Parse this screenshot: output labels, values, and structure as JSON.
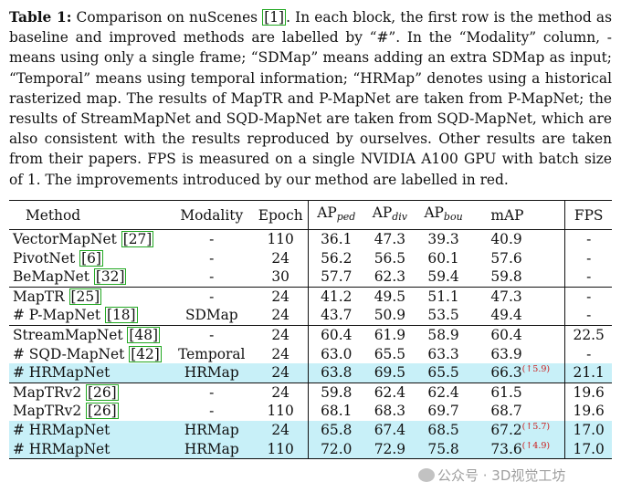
{
  "caption": {
    "label": "Table 1:",
    "seg1": " Comparison on nuScenes ",
    "cite1": "[1]",
    "seg2": ". In each block, the first row is the method as baseline and improved methods are labelled by “#”. In the “Modality” column, - means using only a single frame; “SDMap” means adding an extra SDMap as input; “Temporal” means using temporal information; “HRMap” denotes using a historical rasterized map. The results of MapTR and P-MapNet are taken from P-MapNet; the results of StreamMapNet and SQD-MapNet are taken from SQD-MapNet, which are also consistent with the results reproduced by ourselves. Other results are taken from their papers. FPS is measured on a single NVIDIA A100 GPU with batch size of 1. The improvements introduced by our method are labelled in red."
  },
  "table": {
    "headers": {
      "method": "Method",
      "modality": "Modality",
      "epoch": "Epoch",
      "ap_ped": "AP",
      "ap_ped_sub": "ped",
      "ap_div": "AP",
      "ap_div_sub": "div",
      "ap_bou": "AP",
      "ap_bou_sub": "bou",
      "map": "mAP",
      "fps": "FPS"
    },
    "rows": [
      {
        "method": "VectorMapNet ",
        "cite": "[27]",
        "modality": "-",
        "epoch": "110",
        "ap_ped": "36.1",
        "ap_div": "47.3",
        "ap_bou": "39.3",
        "map": "40.9",
        "gain": "",
        "fps": "-"
      },
      {
        "method": "PivotNet ",
        "cite": "[6]",
        "modality": "-",
        "epoch": "24",
        "ap_ped": "56.2",
        "ap_div": "56.5",
        "ap_bou": "60.1",
        "map": "57.6",
        "gain": "",
        "fps": "-"
      },
      {
        "method": "BeMapNet ",
        "cite": "[32]",
        "modality": "-",
        "epoch": "30",
        "ap_ped": "57.7",
        "ap_div": "62.3",
        "ap_bou": "59.4",
        "map": "59.8",
        "gain": "",
        "fps": "-"
      },
      {
        "method": "MapTR ",
        "cite": "[25]",
        "modality": "-",
        "epoch": "24",
        "ap_ped": "41.2",
        "ap_div": "49.5",
        "ap_bou": "51.1",
        "map": "47.3",
        "gain": "",
        "fps": "-"
      },
      {
        "method": "# P-MapNet ",
        "cite": "[18]",
        "modality": "SDMap",
        "epoch": "24",
        "ap_ped": "43.7",
        "ap_div": "50.9",
        "ap_bou": "53.5",
        "map": "49.4",
        "gain": "",
        "fps": "-"
      },
      {
        "method": "StreamMapNet ",
        "cite": "[48]",
        "modality": "-",
        "epoch": "24",
        "ap_ped": "60.4",
        "ap_div": "61.9",
        "ap_bou": "58.9",
        "map": "60.4",
        "gain": "",
        "fps": "22.5"
      },
      {
        "method": "# SQD-MapNet ",
        "cite": "[42]",
        "modality": "Temporal",
        "epoch": "24",
        "ap_ped": "63.0",
        "ap_div": "65.5",
        "ap_bou": "63.3",
        "map": "63.9",
        "gain": "",
        "fps": "-"
      },
      {
        "method": "# HRMapNet",
        "cite": "",
        "modality": "HRMap",
        "epoch": "24",
        "ap_ped": "63.8",
        "ap_div": "69.5",
        "ap_bou": "65.5",
        "map": "66.3",
        "gain": "(↑5.9)",
        "fps": "21.1"
      },
      {
        "method": "MapTRv2 ",
        "cite": "[26]",
        "modality": "-",
        "epoch": "24",
        "ap_ped": "59.8",
        "ap_div": "62.4",
        "ap_bou": "62.4",
        "map": "61.5",
        "gain": "",
        "fps": "19.6"
      },
      {
        "method": "MapTRv2 ",
        "cite": "[26]",
        "modality": "-",
        "epoch": "110",
        "ap_ped": "68.1",
        "ap_div": "68.3",
        "ap_bou": "69.7",
        "map": "68.7",
        "gain": "",
        "fps": "19.6"
      },
      {
        "method": "# HRMapNet",
        "cite": "",
        "modality": "HRMap",
        "epoch": "24",
        "ap_ped": "65.8",
        "ap_div": "67.4",
        "ap_bou": "68.5",
        "map": "67.2",
        "gain": "(↑5.7)",
        "fps": "17.0"
      },
      {
        "method": "# HRMapNet",
        "cite": "",
        "modality": "HRMap",
        "epoch": "110",
        "ap_ped": "72.0",
        "ap_div": "72.9",
        "ap_bou": "75.8",
        "map": "73.6",
        "gain": "(↑4.9)",
        "fps": "17.0"
      }
    ]
  },
  "watermark": {
    "text": "公众号 · 3D视觉工坊"
  }
}
